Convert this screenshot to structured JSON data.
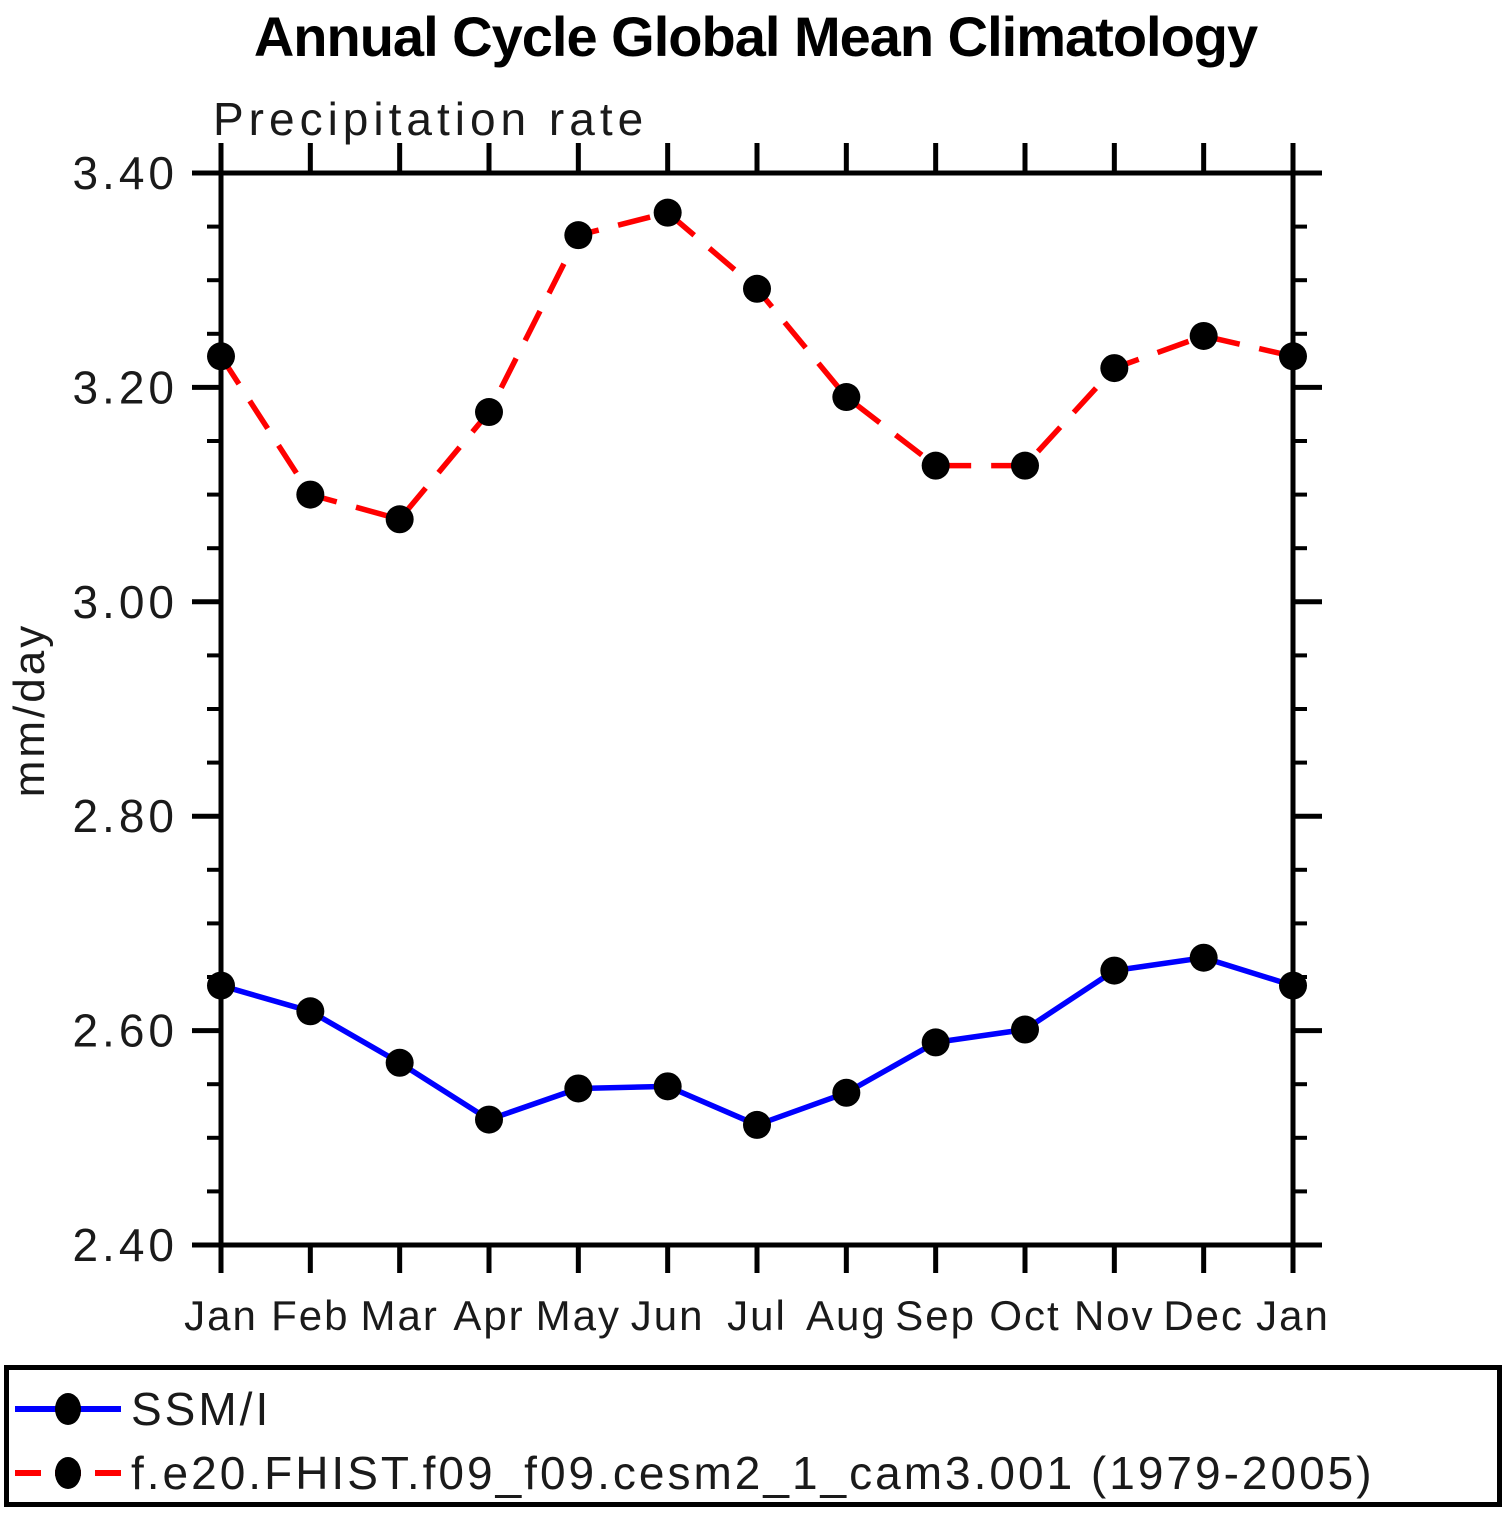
{
  "title": "Annual Cycle Global Mean Climatology",
  "subtitle": "Precipitation rate",
  "ylabel": "mm/day",
  "chart_data": {
    "type": "line",
    "categories": [
      "Jan",
      "Feb",
      "Mar",
      "Apr",
      "May",
      "Jun",
      "Jul",
      "Aug",
      "Sep",
      "Oct",
      "Nov",
      "Dec",
      "Jan"
    ],
    "series": [
      {
        "name": "SSM/I",
        "color": "#0000ff",
        "line_style": "solid",
        "marker": "filled-circle",
        "marker_color": "#000000",
        "values": [
          2.642,
          2.618,
          2.57,
          2.517,
          2.546,
          2.548,
          2.512,
          2.542,
          2.589,
          2.601,
          2.656,
          2.668,
          2.642
        ]
      },
      {
        "name": "f.e20.FHIST.f09_f09.cesm2_1_cam3.001 (1979-2005)",
        "color": "#ff0000",
        "line_style": "dashed",
        "marker": "filled-circle",
        "marker_color": "#000000",
        "values": [
          3.229,
          3.1,
          3.077,
          3.177,
          3.342,
          3.363,
          3.292,
          3.191,
          3.127,
          3.127,
          3.218,
          3.248,
          3.229
        ]
      }
    ],
    "ylim": [
      2.4,
      3.4
    ],
    "ytick_major": 0.2,
    "ytick_minor": 0.05,
    "ytick_labels": [
      "2.40",
      "2.60",
      "2.80",
      "3.00",
      "3.20",
      "3.40"
    ],
    "grid": "off",
    "legend_position": "bottom",
    "axis_color": "#000000"
  }
}
